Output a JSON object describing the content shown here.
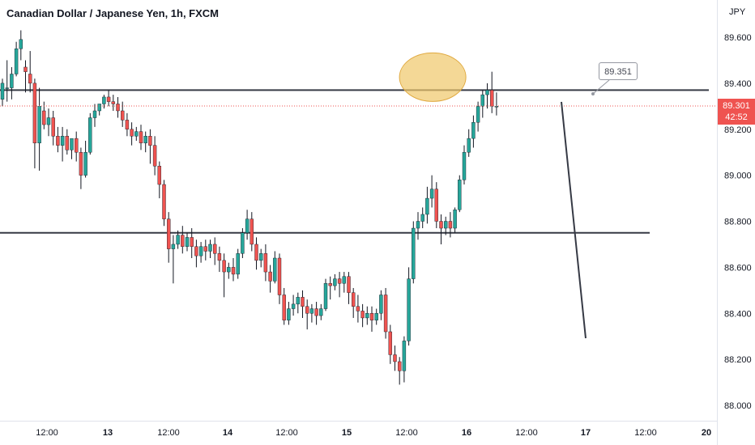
{
  "header": {
    "title": "Canadian Dollar / Japanese Yen, 1h, FXCM",
    "currency": "JPY"
  },
  "price_axis": {
    "ticks": [
      "89.600",
      "89.400",
      "89.200",
      "89.000",
      "88.800",
      "88.600",
      "88.400",
      "88.200",
      "88.000"
    ]
  },
  "time_axis": {
    "ticks": [
      "12:00",
      "13",
      "12:00",
      "14",
      "12:00",
      "15",
      "12:00",
      "16",
      "12:00",
      "17",
      "12:00",
      "20"
    ]
  },
  "last_price": {
    "value": "89.301",
    "countdown": "42:52",
    "color": "#ef5350"
  },
  "annotation": {
    "label": "89.351"
  },
  "colors": {
    "up": "#26a69a",
    "down": "#ef5350",
    "line": "#363a45",
    "highlight": "#f0c86a"
  },
  "chart_data": {
    "type": "candlestick",
    "title": "Canadian Dollar / Japanese Yen, 1h, FXCM",
    "y_unit": "JPY",
    "ylim": [
      87.96,
      89.76
    ],
    "x_labels": [
      "12:00",
      "13",
      "12:00",
      "14",
      "12:00",
      "15",
      "12:00",
      "16",
      "12:00",
      "17",
      "12:00",
      "20"
    ],
    "horizontal_levels": [
      89.37,
      88.75
    ],
    "last_price": 89.301,
    "projection": {
      "from": [
        103,
        89.34
      ],
      "to": [
        108,
        88.32
      ]
    },
    "highlight": {
      "center": [
        93,
        89.43
      ]
    },
    "candles": [
      [
        89.33,
        89.42,
        89.4,
        89.3
      ],
      [
        89.38,
        89.5,
        89.38,
        89.32
      ],
      [
        89.38,
        89.47,
        89.44,
        89.33
      ],
      [
        89.44,
        89.58,
        89.55,
        89.43
      ],
      [
        89.55,
        89.63,
        89.59,
        89.5
      ],
      [
        89.47,
        89.5,
        89.45,
        89.36
      ],
      [
        89.44,
        89.54,
        89.4,
        89.36
      ],
      [
        89.4,
        89.42,
        89.14,
        89.03
      ],
      [
        89.14,
        89.38,
        89.3,
        89.02
      ],
      [
        89.28,
        89.32,
        89.22,
        89.2
      ],
      [
        89.22,
        89.29,
        89.25,
        89.17
      ],
      [
        89.25,
        89.28,
        89.17,
        89.13
      ],
      [
        89.17,
        89.21,
        89.13,
        89.1
      ],
      [
        89.13,
        89.21,
        89.17,
        89.06
      ],
      [
        89.17,
        89.2,
        89.11,
        89.09
      ],
      [
        89.11,
        89.15,
        89.16,
        89.07
      ],
      [
        89.16,
        89.19,
        89.1,
        89.06
      ],
      [
        89.1,
        89.12,
        89.0,
        88.94
      ],
      [
        89.0,
        89.15,
        89.1,
        88.99
      ],
      [
        89.1,
        89.27,
        89.25,
        89.09
      ],
      [
        89.25,
        89.31,
        89.28,
        89.21
      ],
      [
        89.28,
        89.31,
        89.31,
        89.26
      ],
      [
        89.31,
        89.35,
        89.34,
        89.29
      ],
      [
        89.34,
        89.37,
        89.32,
        89.3
      ],
      [
        89.32,
        89.35,
        89.31,
        89.28
      ],
      [
        89.31,
        89.34,
        89.28,
        89.25
      ],
      [
        89.28,
        89.32,
        89.24,
        89.21
      ],
      [
        89.24,
        89.27,
        89.2,
        89.17
      ],
      [
        89.2,
        89.23,
        89.17,
        89.13
      ],
      [
        89.17,
        89.21,
        89.19,
        89.15
      ],
      [
        89.19,
        89.22,
        89.14,
        89.11
      ],
      [
        89.14,
        89.19,
        89.17,
        89.1
      ],
      [
        89.17,
        89.2,
        89.13,
        89.05
      ],
      [
        89.13,
        89.17,
        89.04,
        89.0
      ],
      [
        89.04,
        89.06,
        88.96,
        88.9
      ],
      [
        88.96,
        88.98,
        88.81,
        88.78
      ],
      [
        88.81,
        88.84,
        88.68,
        88.62
      ],
      [
        88.68,
        88.74,
        88.7,
        88.53
      ],
      [
        88.7,
        88.76,
        88.74,
        88.68
      ],
      [
        88.74,
        88.78,
        88.69,
        88.66
      ],
      [
        88.69,
        88.75,
        88.73,
        88.67
      ],
      [
        88.73,
        88.77,
        88.69,
        88.64
      ],
      [
        88.69,
        88.72,
        88.65,
        88.6
      ],
      [
        88.65,
        88.71,
        88.69,
        88.62
      ],
      [
        88.69,
        88.72,
        88.67,
        88.63
      ],
      [
        88.67,
        88.72,
        88.7,
        88.64
      ],
      [
        88.7,
        88.73,
        88.66,
        88.61
      ],
      [
        88.66,
        88.69,
        88.63,
        88.58
      ],
      [
        88.63,
        88.66,
        88.58,
        88.47
      ],
      [
        88.58,
        88.62,
        88.6,
        88.55
      ],
      [
        88.6,
        88.64,
        88.57,
        88.54
      ],
      [
        88.57,
        88.68,
        88.66,
        88.55
      ],
      [
        88.66,
        88.77,
        88.75,
        88.64
      ],
      [
        88.75,
        88.85,
        88.81,
        88.72
      ],
      [
        88.81,
        88.84,
        88.7,
        88.67
      ],
      [
        88.7,
        88.73,
        88.63,
        88.59
      ],
      [
        88.63,
        88.68,
        88.66,
        88.6
      ],
      [
        88.66,
        88.7,
        88.58,
        88.54
      ],
      [
        88.58,
        88.61,
        88.54,
        88.49
      ],
      [
        88.54,
        88.67,
        88.64,
        88.53
      ],
      [
        88.64,
        88.66,
        88.48,
        88.44
      ],
      [
        88.48,
        88.51,
        88.37,
        88.35
      ],
      [
        88.37,
        88.45,
        88.42,
        88.35
      ],
      [
        88.42,
        88.48,
        88.44,
        88.39
      ],
      [
        88.44,
        88.49,
        88.47,
        88.4
      ],
      [
        88.47,
        88.5,
        88.43,
        88.38
      ],
      [
        88.43,
        88.46,
        88.4,
        88.33
      ],
      [
        88.4,
        88.44,
        88.42,
        88.36
      ],
      [
        88.42,
        88.45,
        88.39,
        88.35
      ],
      [
        88.39,
        88.44,
        88.42,
        88.37
      ],
      [
        88.42,
        88.55,
        88.53,
        88.41
      ],
      [
        88.53,
        88.56,
        88.52,
        88.46
      ],
      [
        88.52,
        88.57,
        88.55,
        88.5
      ],
      [
        88.55,
        88.58,
        88.53,
        88.47
      ],
      [
        88.53,
        88.58,
        88.56,
        88.49
      ],
      [
        88.56,
        88.58,
        88.49,
        88.44
      ],
      [
        88.49,
        88.51,
        88.43,
        88.38
      ],
      [
        88.43,
        88.48,
        88.41,
        88.36
      ],
      [
        88.41,
        88.44,
        88.38,
        88.34
      ],
      [
        88.38,
        88.43,
        88.4,
        88.35
      ],
      [
        88.4,
        88.43,
        88.37,
        88.32
      ],
      [
        88.37,
        88.42,
        88.4,
        88.35
      ],
      [
        88.4,
        88.5,
        88.48,
        88.37
      ],
      [
        88.48,
        88.51,
        88.32,
        88.29
      ],
      [
        88.32,
        88.35,
        88.22,
        88.18
      ],
      [
        88.22,
        88.26,
        88.19,
        88.15
      ],
      [
        88.19,
        88.21,
        88.15,
        88.09
      ],
      [
        88.15,
        88.3,
        88.28,
        88.1
      ],
      [
        88.28,
        88.6,
        88.55,
        88.26
      ],
      [
        88.55,
        88.8,
        88.77,
        88.53
      ],
      [
        88.77,
        88.84,
        88.8,
        88.72
      ],
      [
        88.8,
        88.86,
        88.83,
        88.77
      ],
      [
        88.83,
        88.95,
        88.9,
        88.79
      ],
      [
        88.9,
        89.0,
        88.94,
        88.86
      ],
      [
        88.94,
        88.97,
        88.8,
        88.77
      ],
      [
        88.8,
        88.83,
        88.77,
        88.7
      ],
      [
        88.77,
        88.82,
        88.8,
        88.74
      ],
      [
        88.8,
        88.84,
        88.77,
        88.73
      ],
      [
        88.77,
        88.86,
        88.85,
        88.75
      ],
      [
        88.85,
        89.0,
        88.98,
        88.84
      ],
      [
        88.98,
        89.13,
        89.1,
        88.96
      ],
      [
        89.1,
        89.2,
        89.16,
        89.08
      ],
      [
        89.16,
        89.26,
        89.23,
        89.12
      ],
      [
        89.23,
        89.32,
        89.3,
        89.19
      ],
      [
        89.3,
        89.37,
        89.35,
        89.25
      ],
      [
        89.35,
        89.4,
        89.37,
        89.29
      ],
      [
        89.37,
        89.45,
        89.3,
        89.27
      ],
      [
        89.3,
        89.36,
        89.3,
        89.26
      ]
    ]
  }
}
